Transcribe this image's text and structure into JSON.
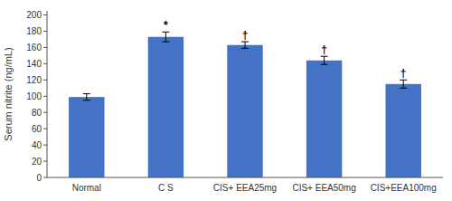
{
  "chart_data": {
    "type": "bar",
    "categories": [
      "Normal",
      "C S",
      "CIS+ EEA25mg",
      "CIS+ EEA50mg",
      "CIS+EEA100mg"
    ],
    "values": [
      99,
      173,
      163,
      144,
      115
    ],
    "errors": [
      4,
      6,
      4,
      5,
      5
    ],
    "annotations": [
      null,
      "*",
      "†",
      "†",
      "†"
    ],
    "color": "#4472C4",
    "ylabel": "Serum nitrite (ng/mL)",
    "ylim": [
      0,
      205
    ],
    "yticks": [
      0,
      20,
      40,
      60,
      80,
      100,
      120,
      140,
      160,
      180,
      200
    ],
    "grid": false
  }
}
